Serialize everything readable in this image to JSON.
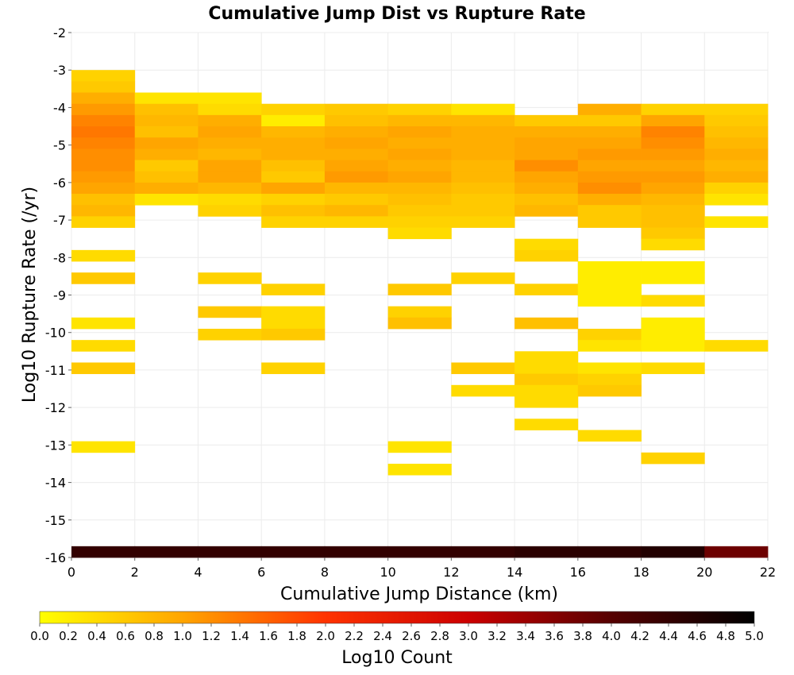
{
  "chart_data": {
    "type": "heatmap",
    "title": "Cumulative Jump Dist vs Rupture Rate",
    "xlabel": "Cumulative Jump Distance (km)",
    "ylabel": "Log10 Rupture Rate (/yr)",
    "colorbar_label": "Log10 Count",
    "xlim": [
      0,
      22
    ],
    "ylim": [
      -16,
      -2
    ],
    "x_ticks": [
      "0",
      "2",
      "4",
      "6",
      "8",
      "10",
      "12",
      "14",
      "16",
      "18",
      "20",
      "22"
    ],
    "y_ticks": [
      "-2",
      "-3",
      "-4",
      "-5",
      "-6",
      "-7",
      "-8",
      "-9",
      "-10",
      "-11",
      "-12",
      "-13",
      "-14",
      "-15",
      "-16"
    ],
    "colorbar_range": [
      0,
      5
    ],
    "colorbar_ticks": [
      "0.0",
      "0.2",
      "0.4",
      "0.6",
      "0.8",
      "1.0",
      "1.2",
      "1.4",
      "1.6",
      "1.8",
      "2.0",
      "2.2",
      "2.4",
      "2.6",
      "2.8",
      "3.0",
      "3.2",
      "3.4",
      "3.6",
      "3.8",
      "4.0",
      "4.2",
      "4.4",
      "4.6",
      "4.8",
      "5.0"
    ],
    "colormap": [
      "#ffff00",
      "#ffa500",
      "#ff3300",
      "#cc0000",
      "#550000",
      "#000000"
    ],
    "x_bin_width": 2,
    "y_bin_height": 0.3,
    "grid": true,
    "legend": "bottom",
    "bins": [
      {
        "x": 0,
        "y": -16,
        "v": 4.4
      },
      {
        "x": 2,
        "y": -16,
        "v": 4.4
      },
      {
        "x": 4,
        "y": -16,
        "v": 4.4
      },
      {
        "x": 6,
        "y": -16,
        "v": 4.4
      },
      {
        "x": 8,
        "y": -16,
        "v": 4.4
      },
      {
        "x": 10,
        "y": -16,
        "v": 4.4
      },
      {
        "x": 12,
        "y": -16,
        "v": 4.4
      },
      {
        "x": 14,
        "y": -16,
        "v": 4.5
      },
      {
        "x": 16,
        "y": -16,
        "v": 4.5
      },
      {
        "x": 18,
        "y": -16,
        "v": 4.6
      },
      {
        "x": 20,
        "y": -16,
        "v": 3.8
      },
      {
        "x": 0,
        "y": -3.3,
        "v": 0.5
      },
      {
        "x": 0,
        "y": -3.6,
        "v": 0.6
      },
      {
        "x": 0,
        "y": -3.9,
        "v": 0.9
      },
      {
        "x": 0,
        "y": -4.2,
        "v": 1.1
      },
      {
        "x": 0,
        "y": -4.5,
        "v": 1.3
      },
      {
        "x": 0,
        "y": -4.8,
        "v": 1.4
      },
      {
        "x": 0,
        "y": -5.1,
        "v": 1.3
      },
      {
        "x": 0,
        "y": -5.4,
        "v": 1.2
      },
      {
        "x": 0,
        "y": -5.7,
        "v": 1.2
      },
      {
        "x": 0,
        "y": -6.0,
        "v": 1.1
      },
      {
        "x": 0,
        "y": -6.3,
        "v": 1.0
      },
      {
        "x": 0,
        "y": -6.6,
        "v": 0.7
      },
      {
        "x": 0,
        "y": -6.9,
        "v": 0.8
      },
      {
        "x": 0,
        "y": -7.2,
        "v": 0.5
      },
      {
        "x": 0,
        "y": -8.1,
        "v": 0.4
      },
      {
        "x": 0,
        "y": -8.7,
        "v": 0.6
      },
      {
        "x": 0,
        "y": -9.9,
        "v": 0.3
      },
      {
        "x": 0,
        "y": -10.5,
        "v": 0.4
      },
      {
        "x": 0,
        "y": -11.1,
        "v": 0.6
      },
      {
        "x": 0,
        "y": -13.2,
        "v": 0.3
      },
      {
        "x": 2,
        "y": -3.9,
        "v": 0.3
      },
      {
        "x": 2,
        "y": -4.2,
        "v": 0.7
      },
      {
        "x": 2,
        "y": -4.5,
        "v": 0.8
      },
      {
        "x": 2,
        "y": -4.8,
        "v": 0.7
      },
      {
        "x": 2,
        "y": -5.1,
        "v": 1.0
      },
      {
        "x": 2,
        "y": -5.4,
        "v": 0.9
      },
      {
        "x": 2,
        "y": -5.7,
        "v": 0.6
      },
      {
        "x": 2,
        "y": -6.0,
        "v": 0.7
      },
      {
        "x": 2,
        "y": -6.3,
        "v": 0.9
      },
      {
        "x": 2,
        "y": -6.6,
        "v": 0.3
      },
      {
        "x": 4,
        "y": -3.9,
        "v": 0.3
      },
      {
        "x": 4,
        "y": -4.2,
        "v": 0.4
      },
      {
        "x": 4,
        "y": -4.5,
        "v": 0.9
      },
      {
        "x": 4,
        "y": -4.8,
        "v": 1.0
      },
      {
        "x": 4,
        "y": -5.1,
        "v": 0.9
      },
      {
        "x": 4,
        "y": -5.4,
        "v": 0.8
      },
      {
        "x": 4,
        "y": -5.7,
        "v": 1.0
      },
      {
        "x": 4,
        "y": -6.0,
        "v": 1.0
      },
      {
        "x": 4,
        "y": -6.3,
        "v": 0.8
      },
      {
        "x": 4,
        "y": -6.6,
        "v": 0.4
      },
      {
        "x": 4,
        "y": -6.9,
        "v": 0.5
      },
      {
        "x": 4,
        "y": -8.7,
        "v": 0.5
      },
      {
        "x": 4,
        "y": -9.6,
        "v": 0.6
      },
      {
        "x": 4,
        "y": -10.2,
        "v": 0.5
      },
      {
        "x": 6,
        "y": -4.2,
        "v": 0.5
      },
      {
        "x": 6,
        "y": -4.5,
        "v": 0.2
      },
      {
        "x": 6,
        "y": -4.8,
        "v": 0.8
      },
      {
        "x": 6,
        "y": -5.1,
        "v": 0.9
      },
      {
        "x": 6,
        "y": -5.4,
        "v": 0.9
      },
      {
        "x": 6,
        "y": -5.7,
        "v": 0.7
      },
      {
        "x": 6,
        "y": -6.0,
        "v": 0.6
      },
      {
        "x": 6,
        "y": -6.3,
        "v": 1.0
      },
      {
        "x": 6,
        "y": -6.6,
        "v": 0.5
      },
      {
        "x": 6,
        "y": -6.9,
        "v": 0.7
      },
      {
        "x": 6,
        "y": -7.2,
        "v": 0.5
      },
      {
        "x": 6,
        "y": -9.0,
        "v": 0.5
      },
      {
        "x": 6,
        "y": -9.6,
        "v": 0.4
      },
      {
        "x": 6,
        "y": -9.9,
        "v": 0.4
      },
      {
        "x": 6,
        "y": -10.2,
        "v": 0.6
      },
      {
        "x": 6,
        "y": -11.1,
        "v": 0.5
      },
      {
        "x": 8,
        "y": -4.2,
        "v": 0.6
      },
      {
        "x": 8,
        "y": -4.5,
        "v": 0.7
      },
      {
        "x": 8,
        "y": -4.8,
        "v": 0.9
      },
      {
        "x": 8,
        "y": -5.1,
        "v": 1.0
      },
      {
        "x": 8,
        "y": -5.4,
        "v": 0.9
      },
      {
        "x": 8,
        "y": -5.7,
        "v": 1.0
      },
      {
        "x": 8,
        "y": -6.0,
        "v": 1.1
      },
      {
        "x": 8,
        "y": -6.3,
        "v": 0.8
      },
      {
        "x": 8,
        "y": -6.6,
        "v": 0.6
      },
      {
        "x": 8,
        "y": -6.9,
        "v": 0.8
      },
      {
        "x": 8,
        "y": -7.2,
        "v": 0.5
      },
      {
        "x": 10,
        "y": -4.2,
        "v": 0.5
      },
      {
        "x": 10,
        "y": -4.5,
        "v": 0.8
      },
      {
        "x": 10,
        "y": -4.8,
        "v": 1.0
      },
      {
        "x": 10,
        "y": -5.1,
        "v": 0.9
      },
      {
        "x": 10,
        "y": -5.4,
        "v": 1.0
      },
      {
        "x": 10,
        "y": -5.7,
        "v": 0.9
      },
      {
        "x": 10,
        "y": -6.0,
        "v": 1.0
      },
      {
        "x": 10,
        "y": -6.3,
        "v": 0.8
      },
      {
        "x": 10,
        "y": -6.6,
        "v": 0.7
      },
      {
        "x": 10,
        "y": -6.9,
        "v": 0.6
      },
      {
        "x": 10,
        "y": -7.2,
        "v": 0.5
      },
      {
        "x": 10,
        "y": -7.5,
        "v": 0.4
      },
      {
        "x": 10,
        "y": -9.0,
        "v": 0.6
      },
      {
        "x": 10,
        "y": -9.6,
        "v": 0.5
      },
      {
        "x": 10,
        "y": -9.9,
        "v": 0.7
      },
      {
        "x": 10,
        "y": -13.2,
        "v": 0.3
      },
      {
        "x": 10,
        "y": -13.8,
        "v": 0.3
      },
      {
        "x": 12,
        "y": -4.2,
        "v": 0.3
      },
      {
        "x": 12,
        "y": -4.5,
        "v": 0.8
      },
      {
        "x": 12,
        "y": -4.8,
        "v": 0.9
      },
      {
        "x": 12,
        "y": -5.1,
        "v": 0.9
      },
      {
        "x": 12,
        "y": -5.4,
        "v": 0.9
      },
      {
        "x": 12,
        "y": -5.7,
        "v": 0.8
      },
      {
        "x": 12,
        "y": -6.0,
        "v": 0.8
      },
      {
        "x": 12,
        "y": -6.3,
        "v": 0.7
      },
      {
        "x": 12,
        "y": -6.6,
        "v": 0.6
      },
      {
        "x": 12,
        "y": -6.9,
        "v": 0.6
      },
      {
        "x": 12,
        "y": -7.2,
        "v": 0.5
      },
      {
        "x": 12,
        "y": -8.7,
        "v": 0.5
      },
      {
        "x": 12,
        "y": -11.1,
        "v": 0.6
      },
      {
        "x": 12,
        "y": -11.7,
        "v": 0.4
      },
      {
        "x": 14,
        "y": -4.5,
        "v": 0.6
      },
      {
        "x": 14,
        "y": -4.8,
        "v": 0.9
      },
      {
        "x": 14,
        "y": -5.1,
        "v": 1.0
      },
      {
        "x": 14,
        "y": -5.4,
        "v": 1.0
      },
      {
        "x": 14,
        "y": -5.7,
        "v": 1.2
      },
      {
        "x": 14,
        "y": -6.0,
        "v": 1.0
      },
      {
        "x": 14,
        "y": -6.3,
        "v": 0.9
      },
      {
        "x": 14,
        "y": -6.6,
        "v": 0.7
      },
      {
        "x": 14,
        "y": -6.9,
        "v": 0.8
      },
      {
        "x": 14,
        "y": -7.8,
        "v": 0.4
      },
      {
        "x": 14,
        "y": -8.1,
        "v": 0.5
      },
      {
        "x": 14,
        "y": -9.0,
        "v": 0.5
      },
      {
        "x": 14,
        "y": -9.9,
        "v": 0.7
      },
      {
        "x": 14,
        "y": -10.8,
        "v": 0.4
      },
      {
        "x": 14,
        "y": -11.1,
        "v": 0.4
      },
      {
        "x": 14,
        "y": -11.4,
        "v": 0.6
      },
      {
        "x": 14,
        "y": -11.7,
        "v": 0.4
      },
      {
        "x": 14,
        "y": -12.0,
        "v": 0.4
      },
      {
        "x": 14,
        "y": -12.6,
        "v": 0.4
      },
      {
        "x": 16,
        "y": -4.2,
        "v": 0.9
      },
      {
        "x": 16,
        "y": -4.5,
        "v": 0.6
      },
      {
        "x": 16,
        "y": -4.8,
        "v": 0.9
      },
      {
        "x": 16,
        "y": -5.1,
        "v": 1.0
      },
      {
        "x": 16,
        "y": -5.4,
        "v": 1.1
      },
      {
        "x": 16,
        "y": -5.7,
        "v": 1.0
      },
      {
        "x": 16,
        "y": -6.0,
        "v": 1.1
      },
      {
        "x": 16,
        "y": -6.3,
        "v": 1.2
      },
      {
        "x": 16,
        "y": -6.6,
        "v": 0.9
      },
      {
        "x": 16,
        "y": -6.9,
        "v": 0.6
      },
      {
        "x": 16,
        "y": -7.2,
        "v": 0.6
      },
      {
        "x": 16,
        "y": -8.4,
        "v": 0.2
      },
      {
        "x": 16,
        "y": -8.7,
        "v": 0.2
      },
      {
        "x": 16,
        "y": -9.0,
        "v": 0.2
      },
      {
        "x": 16,
        "y": -9.3,
        "v": 0.2
      },
      {
        "x": 16,
        "y": -10.2,
        "v": 0.5
      },
      {
        "x": 16,
        "y": -10.5,
        "v": 0.3
      },
      {
        "x": 16,
        "y": -11.1,
        "v": 0.3
      },
      {
        "x": 16,
        "y": -11.4,
        "v": 0.5
      },
      {
        "x": 16,
        "y": -11.7,
        "v": 0.6
      },
      {
        "x": 16,
        "y": -12.9,
        "v": 0.4
      },
      {
        "x": 18,
        "y": -4.2,
        "v": 0.5
      },
      {
        "x": 18,
        "y": -4.5,
        "v": 1.0
      },
      {
        "x": 18,
        "y": -4.8,
        "v": 1.3
      },
      {
        "x": 18,
        "y": -5.1,
        "v": 1.2
      },
      {
        "x": 18,
        "y": -5.4,
        "v": 1.1
      },
      {
        "x": 18,
        "y": -5.7,
        "v": 1.0
      },
      {
        "x": 18,
        "y": -6.0,
        "v": 1.1
      },
      {
        "x": 18,
        "y": -6.3,
        "v": 1.0
      },
      {
        "x": 18,
        "y": -6.6,
        "v": 0.8
      },
      {
        "x": 18,
        "y": -6.9,
        "v": 0.7
      },
      {
        "x": 18,
        "y": -7.2,
        "v": 0.7
      },
      {
        "x": 18,
        "y": -7.5,
        "v": 0.6
      },
      {
        "x": 18,
        "y": -7.8,
        "v": 0.4
      },
      {
        "x": 18,
        "y": -8.4,
        "v": 0.2
      },
      {
        "x": 18,
        "y": -8.7,
        "v": 0.2
      },
      {
        "x": 18,
        "y": -9.3,
        "v": 0.4
      },
      {
        "x": 18,
        "y": -9.9,
        "v": 0.2
      },
      {
        "x": 18,
        "y": -10.2,
        "v": 0.2
      },
      {
        "x": 18,
        "y": -10.5,
        "v": 0.2
      },
      {
        "x": 18,
        "y": -11.1,
        "v": 0.4
      },
      {
        "x": 18,
        "y": -13.5,
        "v": 0.5
      },
      {
        "x": 20,
        "y": -4.2,
        "v": 0.5
      },
      {
        "x": 20,
        "y": -4.5,
        "v": 0.6
      },
      {
        "x": 20,
        "y": -4.8,
        "v": 0.7
      },
      {
        "x": 20,
        "y": -5.1,
        "v": 0.8
      },
      {
        "x": 20,
        "y": -5.4,
        "v": 0.9
      },
      {
        "x": 20,
        "y": -5.7,
        "v": 0.8
      },
      {
        "x": 20,
        "y": -6.0,
        "v": 0.9
      },
      {
        "x": 20,
        "y": -6.3,
        "v": 0.5
      },
      {
        "x": 20,
        "y": -6.6,
        "v": 0.3
      },
      {
        "x": 20,
        "y": -7.2,
        "v": 0.3
      },
      {
        "x": 20,
        "y": -10.5,
        "v": 0.4
      }
    ]
  }
}
